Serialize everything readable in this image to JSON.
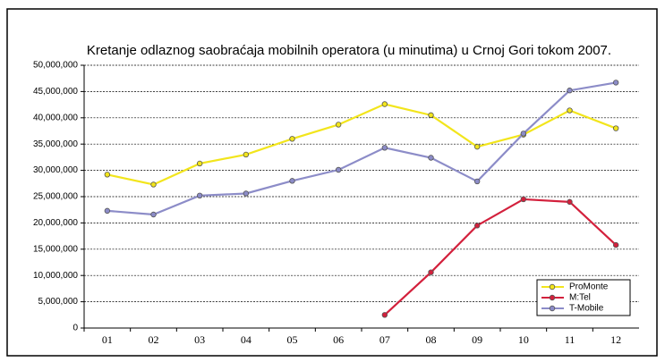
{
  "chart_data": {
    "type": "line",
    "title": "Kretanje odlaznog saobraćaja mobilnih operatora (u minutima) u Crnoj Gori tokom 2007.",
    "categories": [
      "01",
      "02",
      "03",
      "04",
      "05",
      "06",
      "07",
      "08",
      "09",
      "10",
      "11",
      "12"
    ],
    "series": [
      {
        "name": "ProMonte",
        "color": "#f2e51c",
        "values": [
          29200000,
          27300000,
          31300000,
          33000000,
          36000000,
          38700000,
          42600000,
          40500000,
          34500000,
          36800000,
          41400000,
          38000000
        ]
      },
      {
        "name": "M:Tel",
        "color": "#d3203c",
        "values": [
          null,
          null,
          null,
          null,
          null,
          null,
          2500000,
          10600000,
          19500000,
          24500000,
          24000000,
          15800000
        ]
      },
      {
        "name": "T-Mobile",
        "color": "#8c8cc8",
        "values": [
          22300000,
          21600000,
          25200000,
          25600000,
          28000000,
          30100000,
          34300000,
          32400000,
          27900000,
          37000000,
          45200000,
          46700000
        ]
      }
    ],
    "ylim": [
      0,
      50000000
    ],
    "yticks": [
      0,
      {
        "value": 5000000,
        "label": "5,000,000"
      },
      {
        "value": 10000000,
        "label": "10,000,000"
      },
      {
        "value": 15000000,
        "label": "15,000,000"
      },
      {
        "value": 20000000,
        "label": "20,000,000"
      },
      {
        "value": 25000000,
        "label": "25,000,000"
      },
      {
        "value": 30000000,
        "label": "30,000,000"
      },
      {
        "value": 35000000,
        "label": "35,000,000"
      },
      {
        "value": 40000000,
        "label": "40,000,000"
      },
      {
        "value": 45000000,
        "label": "45,000,000"
      },
      {
        "value": 50000000,
        "label": "50,000,000"
      }
    ],
    "grid": true,
    "legend": "lower right"
  }
}
